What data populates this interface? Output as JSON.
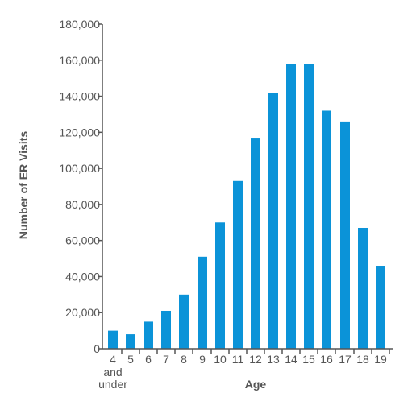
{
  "chart_data": {
    "type": "bar",
    "categories": [
      "4",
      "5",
      "6",
      "7",
      "8",
      "9",
      "10",
      "11",
      "12",
      "13",
      "14",
      "15",
      "16",
      "17",
      "18",
      "19"
    ],
    "category_sublabel": {
      "index": 0,
      "lines": [
        "and",
        "under"
      ]
    },
    "values": [
      10000,
      8000,
      15000,
      21000,
      30000,
      51000,
      70000,
      93000,
      117000,
      142000,
      158000,
      158000,
      132000,
      126000,
      67000,
      46000
    ],
    "xlabel": "Age",
    "ylabel": "Number of ER Visits",
    "ylim": [
      0,
      180000
    ],
    "yticks": [
      0,
      20000,
      40000,
      60000,
      80000,
      100000,
      120000,
      140000,
      160000,
      180000
    ],
    "ytick_labels": [
      "0",
      "20,000",
      "40,000",
      "60,000",
      "80,000",
      "100,000",
      "120,000",
      "140,000",
      "160,000",
      "180,000"
    ],
    "grid": false,
    "bar_color": "#0b93d8",
    "axis_color": "#555555"
  }
}
